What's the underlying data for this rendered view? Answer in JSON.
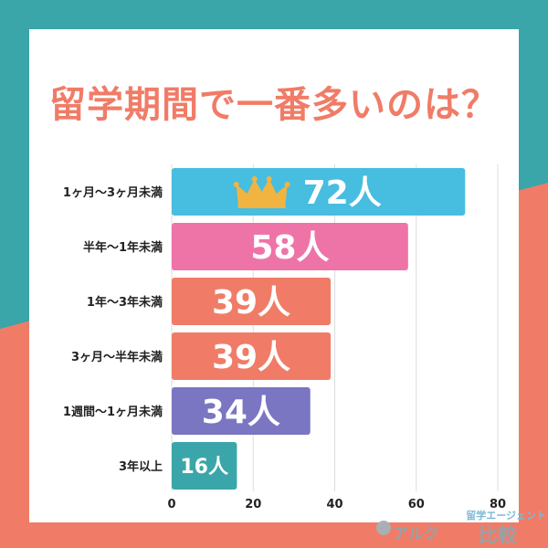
{
  "colors": {
    "teal": "#3aa6a9",
    "coral": "#f07c67",
    "bar_blue": "#47bde0",
    "bar_pink": "#ee74a8",
    "bar_coral": "#f07c67",
    "bar_purple": "#7a76c2",
    "bar_teal": "#3aa6a9",
    "crown": "#f2b440"
  },
  "title": "留学期間で一番多いのは？",
  "chart_data": {
    "type": "bar",
    "orientation": "horizontal",
    "title": "留学期間で一番多いのは？",
    "categories": [
      "1ヶ月～3ヶ月未満",
      "半年～1年未満",
      "1年～3年未満",
      "3ヶ月～半年未満",
      "1週間～1ヶ月未満",
      "3年以上"
    ],
    "values": [
      72,
      58,
      39,
      39,
      34,
      16
    ],
    "value_labels": [
      "72人",
      "58人",
      "39人",
      "39人",
      "34人",
      "16人"
    ],
    "bar_colors": [
      "#47bde0",
      "#ee74a8",
      "#f07c67",
      "#f07c67",
      "#7a76c2",
      "#3aa6a9"
    ],
    "xlim": [
      0,
      80
    ],
    "xticks": [
      0,
      20,
      40,
      60,
      80
    ],
    "xtick_labels": [
      "0",
      "20",
      "40",
      "60",
      "80"
    ],
    "grid": true,
    "highlight": "crown-icon on top bar"
  },
  "logo": {
    "top": "留学エージェント",
    "brand": "アルク",
    "right": "比較"
  }
}
